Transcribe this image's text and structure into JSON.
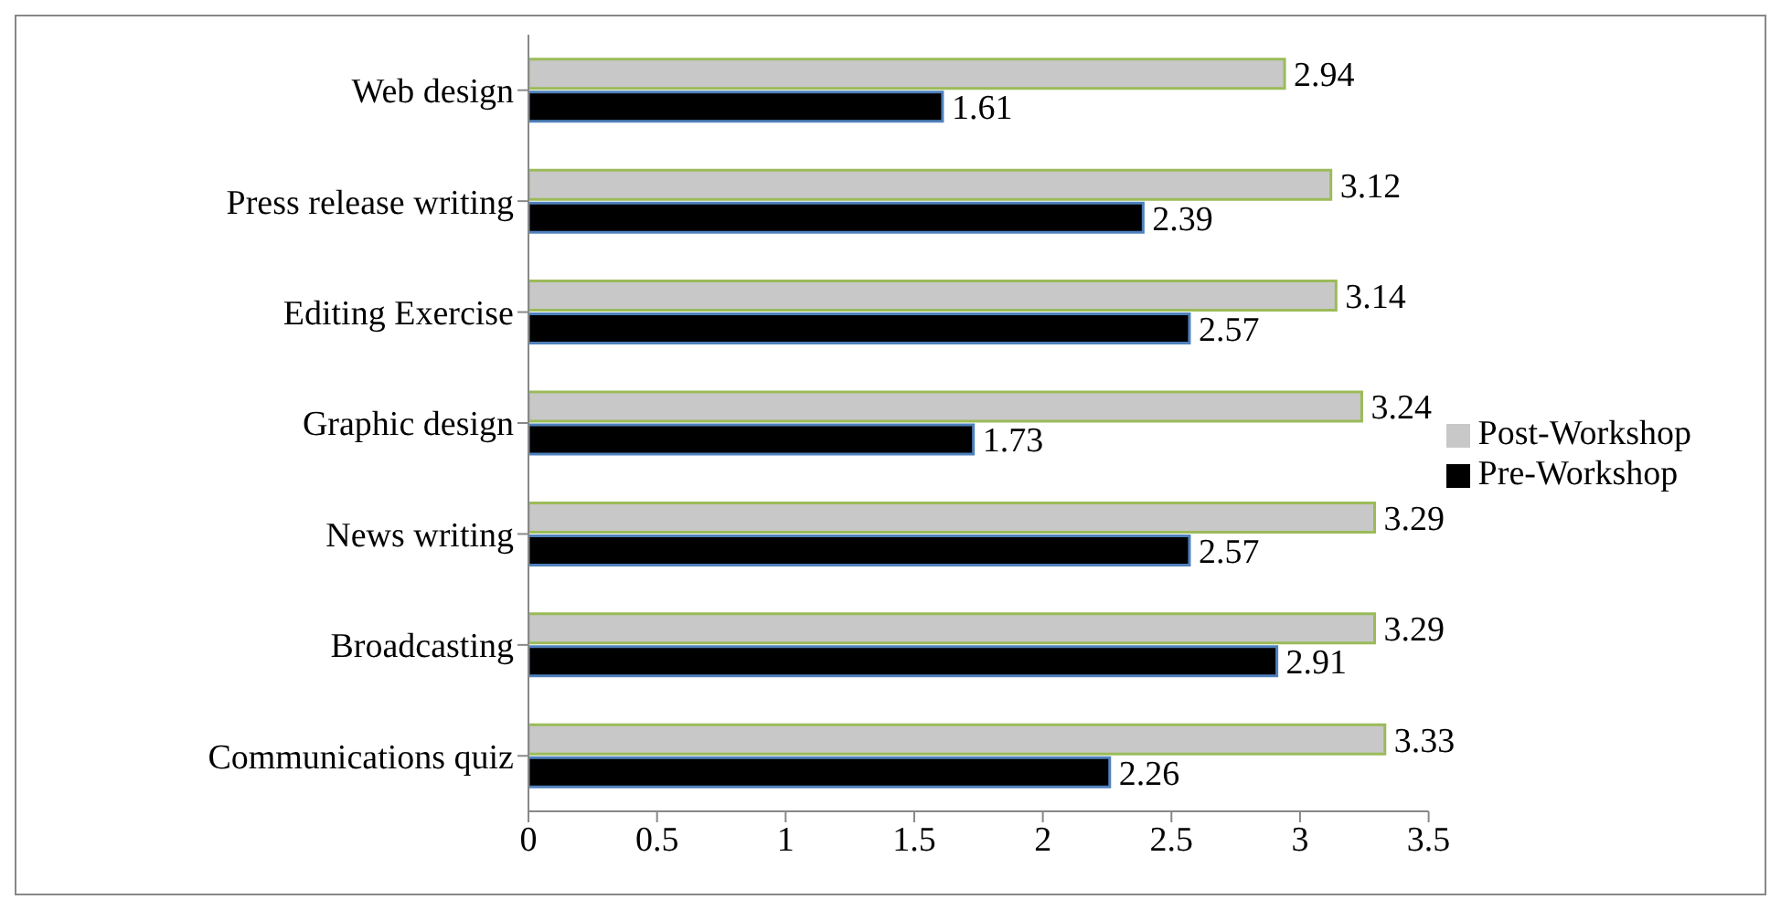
{
  "chart_data": {
    "type": "bar",
    "orientation": "horizontal",
    "categories": [
      "Web design",
      "Press release writing",
      "Editing Exercise",
      "Graphic design",
      "News writing",
      "Broadcasting",
      "Communications quiz"
    ],
    "series": [
      {
        "name": "Post-Workshop",
        "color": "#c8c8c8",
        "values": [
          2.94,
          3.12,
          3.14,
          3.24,
          3.29,
          3.29,
          3.33
        ]
      },
      {
        "name": "Pre-Workshop",
        "color": "#000000",
        "values": [
          1.61,
          2.39,
          2.57,
          1.73,
          2.57,
          2.91,
          2.26
        ]
      }
    ],
    "xlim": [
      0,
      3.5
    ],
    "xticks": [
      0,
      0.5,
      1,
      1.5,
      2,
      2.5,
      3,
      3.5
    ],
    "data_labels": true,
    "grid": false,
    "legend": "right"
  }
}
